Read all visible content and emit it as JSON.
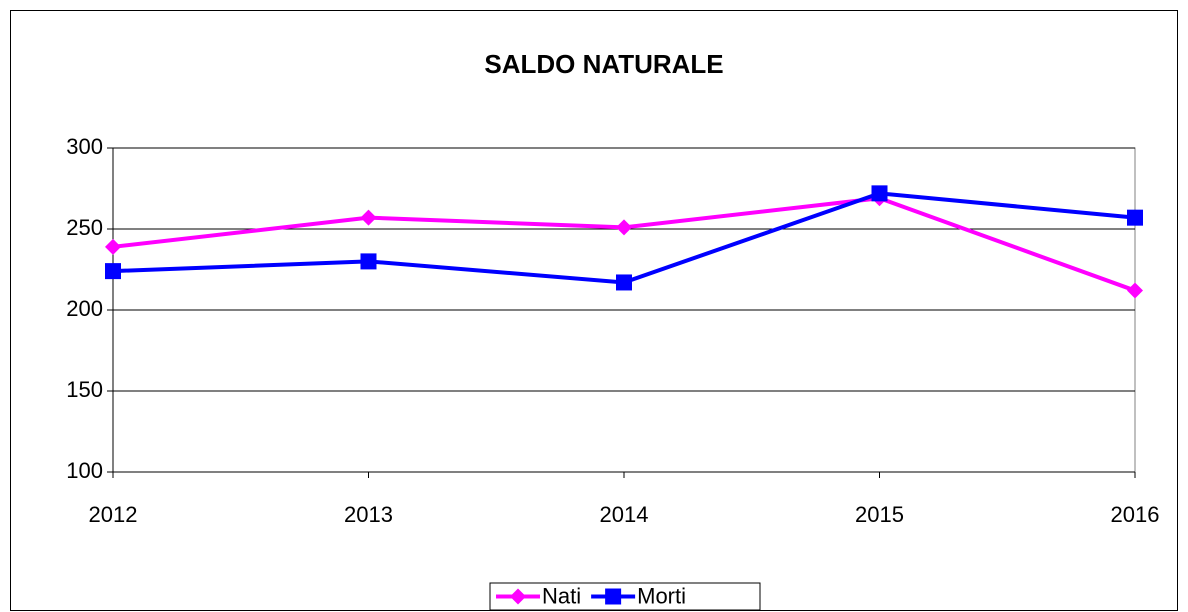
{
  "chart_data": {
    "type": "line",
    "title": "SALDO NATURALE",
    "categories": [
      "2012",
      "2013",
      "2014",
      "2015",
      "2016"
    ],
    "series": [
      {
        "name": "Nati",
        "color": "#ff00ff",
        "marker": "diamond",
        "values": [
          239,
          257,
          251,
          269,
          212
        ]
      },
      {
        "name": "Morti",
        "color": "#0000ff",
        "marker": "square",
        "values": [
          224,
          230,
          217,
          272,
          257
        ]
      }
    ],
    "ylim": [
      100,
      300
    ],
    "yticks": [
      100,
      150,
      200,
      250,
      300
    ],
    "grid": true,
    "legend": "bottom"
  }
}
